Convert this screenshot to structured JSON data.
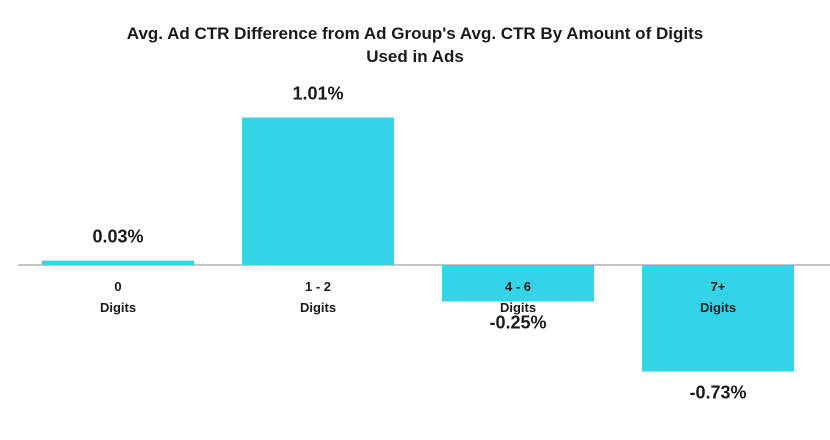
{
  "chart_data": {
    "type": "bar",
    "title_lines": [
      "Avg. Ad CTR Difference from Ad Group's Avg. CTR By Amount of Digits",
      "Used in Ads"
    ],
    "categories": [
      {
        "line1": "0",
        "line2": "Digits"
      },
      {
        "line1": "1 - 2",
        "line2": "Digits"
      },
      {
        "line1": "4 - 6",
        "line2": "Digits"
      },
      {
        "line1": "7+",
        "line2": "Digits"
      }
    ],
    "values": [
      0.03,
      1.01,
      -0.25,
      -0.73
    ],
    "value_labels": [
      "0.03%",
      "1.01%",
      "-0.25%",
      "-0.73%"
    ],
    "unit": "%",
    "xlabel": "",
    "ylabel": "",
    "grid": false,
    "legend": "none",
    "bar_color": "#33d3e8"
  }
}
